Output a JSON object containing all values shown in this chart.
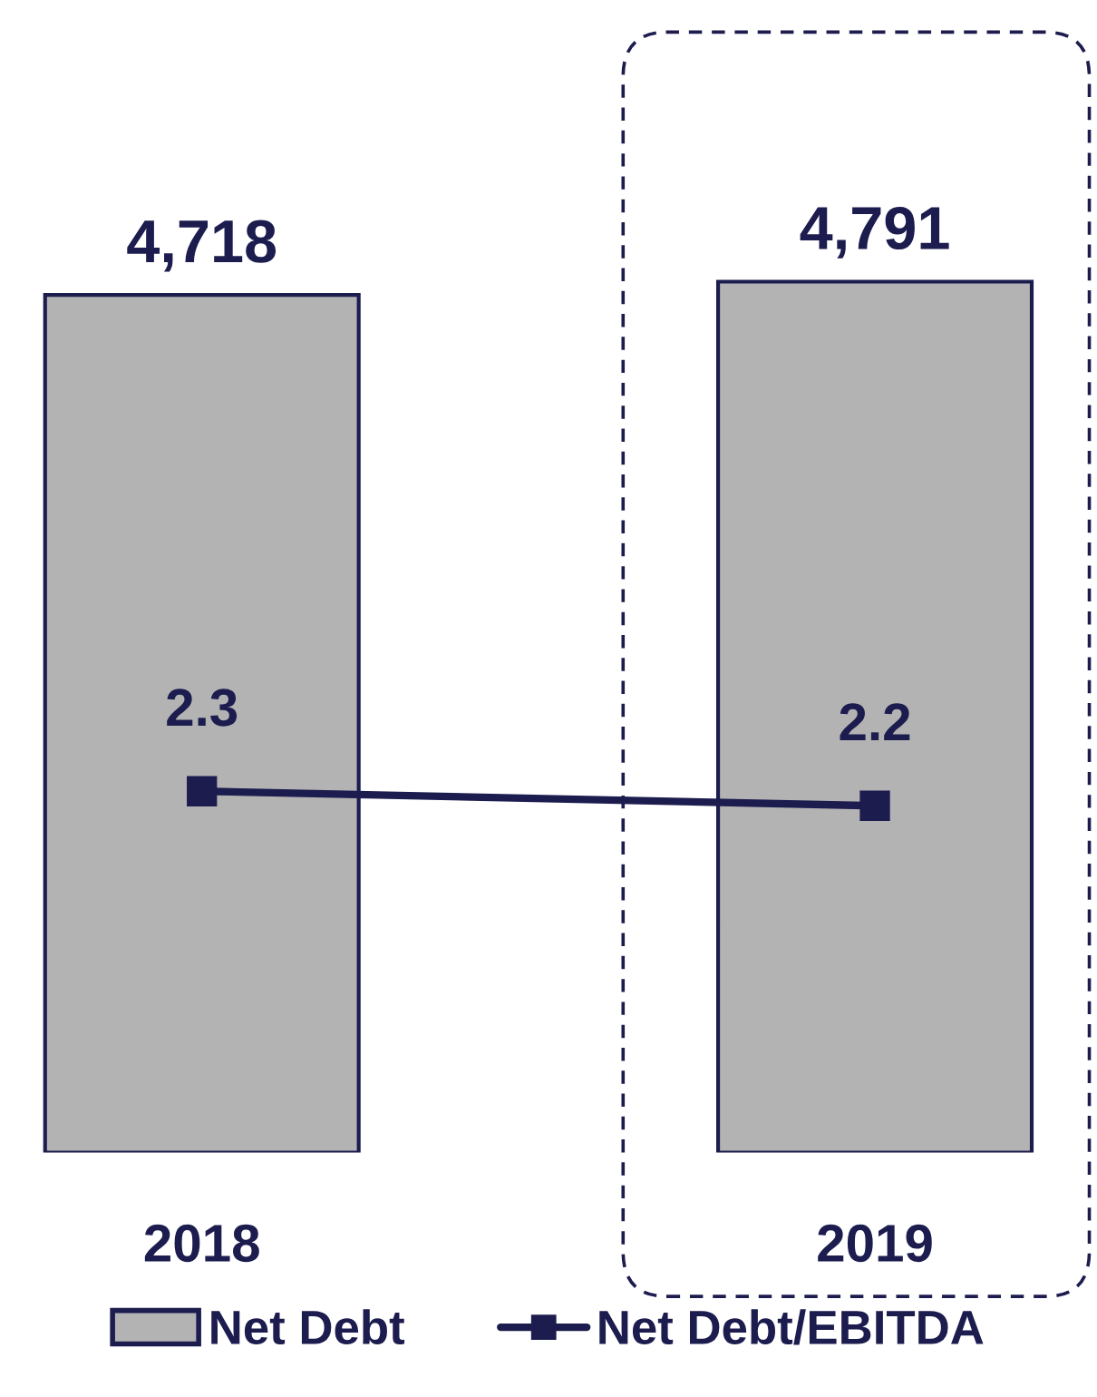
{
  "chart_data": {
    "type": "bar",
    "categories": [
      "2018",
      "2019"
    ],
    "series": [
      {
        "name": "Net Debt",
        "color": "#b3b3b3",
        "values": [
          4718,
          4791
        ],
        "value_labels": [
          "4,718",
          "4,791"
        ]
      },
      {
        "name": "Net Debt/EBITDA",
        "type": "line",
        "axis": "y2",
        "color": "#1c1c4f",
        "values": [
          2.3,
          2.2
        ]
      }
    ],
    "tick_labels": "x",
    "data_labels": true,
    "marker": "square",
    "line_style": "solid",
    "legend": "bottom",
    "grid": false
  }
}
